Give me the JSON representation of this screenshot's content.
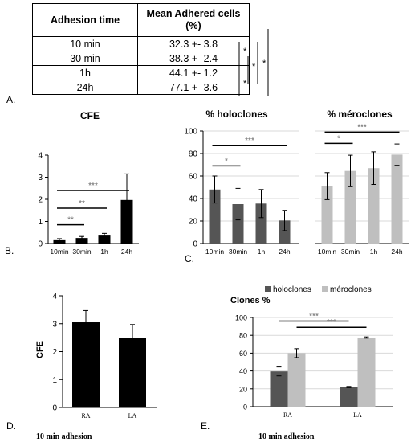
{
  "panel_labels": {
    "A": "A.",
    "B": "B.",
    "C": "C.",
    "D": "D.",
    "E": "E."
  },
  "table": {
    "headers": [
      "Adhesion time",
      "Mean Adhered cells (%)"
    ],
    "rows": [
      [
        "10 min",
        "32.3 +- 3.8"
      ],
      [
        "30 min",
        "38.3 +- 2.4"
      ],
      [
        "1h",
        "44.1 +- 1.2"
      ],
      [
        "24h",
        "77.1 +- 3.6"
      ]
    ],
    "significance": [
      "*",
      "*",
      "*",
      "*"
    ]
  },
  "chart_data": [
    {
      "id": "cfe",
      "type": "bar",
      "title": "CFE",
      "categories": [
        "10min",
        "30min",
        "1h",
        "24h"
      ],
      "values": [
        0.15,
        0.25,
        0.36,
        1.97
      ],
      "errors": [
        0.07,
        0.07,
        0.1,
        1.18
      ],
      "ylim": [
        0,
        4
      ],
      "yticks": [
        "0",
        "1",
        "2",
        "3",
        "4"
      ],
      "color": "#000000",
      "significance": [
        {
          "from": 0,
          "to": 1,
          "label": "**",
          "y": 0.85
        },
        {
          "from": 0,
          "to": 2,
          "label": "**",
          "y": 1.6
        },
        {
          "from": 0,
          "to": 3,
          "label": "***",
          "y": 2.4
        }
      ]
    },
    {
      "id": "holoclones",
      "type": "bar",
      "title": "% holoclones",
      "categories": [
        "10min",
        "30min",
        "1h",
        "24h"
      ],
      "values": [
        48,
        35,
        35.5,
        20.5
      ],
      "errors": [
        12,
        14,
        12.5,
        9
      ],
      "ylim": [
        0,
        100
      ],
      "yticks": [
        "0",
        "20",
        "40",
        "60",
        "80",
        "100"
      ],
      "color": "#555555",
      "significance": [
        {
          "from": 0,
          "to": 1,
          "label": "*",
          "y": 69
        },
        {
          "from": 0,
          "to": 3,
          "label": "***",
          "y": 87
        }
      ]
    },
    {
      "id": "meroclones",
      "type": "bar",
      "title": "% méroclones",
      "categories": [
        "10min",
        "30min",
        "1h",
        "24h"
      ],
      "values": [
        51,
        64.5,
        67,
        79
      ],
      "errors": [
        12,
        14,
        14.5,
        9.5
      ],
      "ylim": [
        0,
        100
      ],
      "color": "#bfbfbf",
      "significance": [
        {
          "from": 0,
          "to": 1,
          "label": "*",
          "y": 89
        },
        {
          "from": 0,
          "to": 3,
          "label": "***",
          "y": 99
        }
      ]
    },
    {
      "id": "cfe-adhesion",
      "type": "bar",
      "title": "",
      "ylabel": "CFE",
      "xlabel": "10 min adhesion",
      "categories": [
        "RA",
        "LA"
      ],
      "values": [
        3.05,
        2.5
      ],
      "errors": [
        0.42,
        0.47
      ],
      "ylim": [
        0,
        4
      ],
      "yticks": [
        "0",
        "1",
        "2",
        "3",
        "4"
      ],
      "color": "#000000"
    },
    {
      "id": "clones",
      "type": "bar",
      "title": "Clones %",
      "xlabel": "10 min adhesion",
      "categories": [
        "RA",
        "LA"
      ],
      "series": [
        {
          "name": "holoclones",
          "values": [
            39.5,
            22
          ],
          "errors": [
            5,
            0.7
          ],
          "color": "#555555"
        },
        {
          "name": "méroclones",
          "values": [
            60,
            77.5
          ],
          "errors": [
            5,
            0.7
          ],
          "color": "#bfbfbf"
        }
      ],
      "ylim": [
        0,
        100
      ],
      "yticks": [
        "0",
        "20",
        "40",
        "60",
        "80",
        "100"
      ],
      "legend": "top",
      "significance": [
        {
          "from": [
            0,
            0
          ],
          "to": [
            1,
            0
          ],
          "label": "***",
          "y": 96
        },
        {
          "from": [
            0,
            1
          ],
          "to": [
            1,
            1
          ],
          "label": "***",
          "y": 89
        }
      ]
    }
  ]
}
